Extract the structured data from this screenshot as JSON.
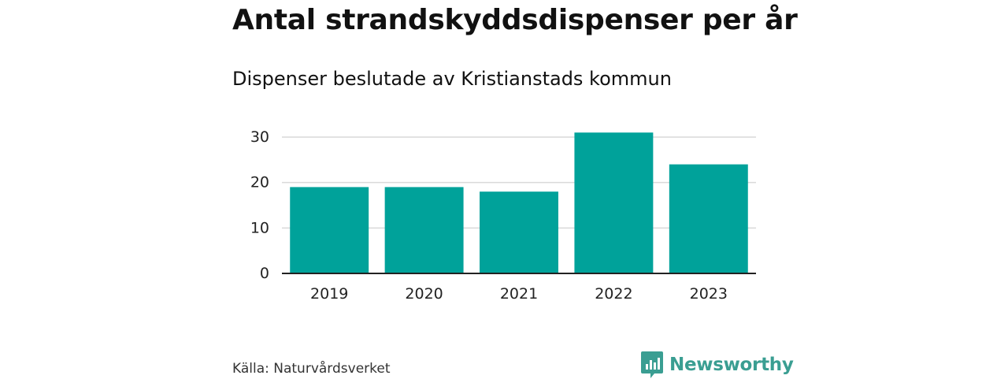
{
  "title": "Antal strandskyddsdispenser per år",
  "subtitle": "Dispenser beslutade av Kristianstads kommun",
  "source": "Källa: Naturvårdsverket",
  "brand": {
    "name": "Newsworthy",
    "icon": "newsworthy-logo-icon",
    "color": "#3a9e92"
  },
  "colors": {
    "bar": "#00a29a",
    "grid": "#d9d9d9",
    "axis": "#222222"
  },
  "chart_data": {
    "type": "bar",
    "categories": [
      "2019",
      "2020",
      "2021",
      "2022",
      "2023"
    ],
    "values": [
      19,
      19,
      18,
      31,
      24
    ],
    "title": "Antal strandskyddsdispenser per år",
    "subtitle": "Dispenser beslutade av Kristianstads kommun",
    "xlabel": "",
    "ylabel": "",
    "ylim": [
      0,
      30
    ],
    "yticks": [
      0,
      10,
      20,
      30
    ],
    "grid": true,
    "legend": "none"
  }
}
